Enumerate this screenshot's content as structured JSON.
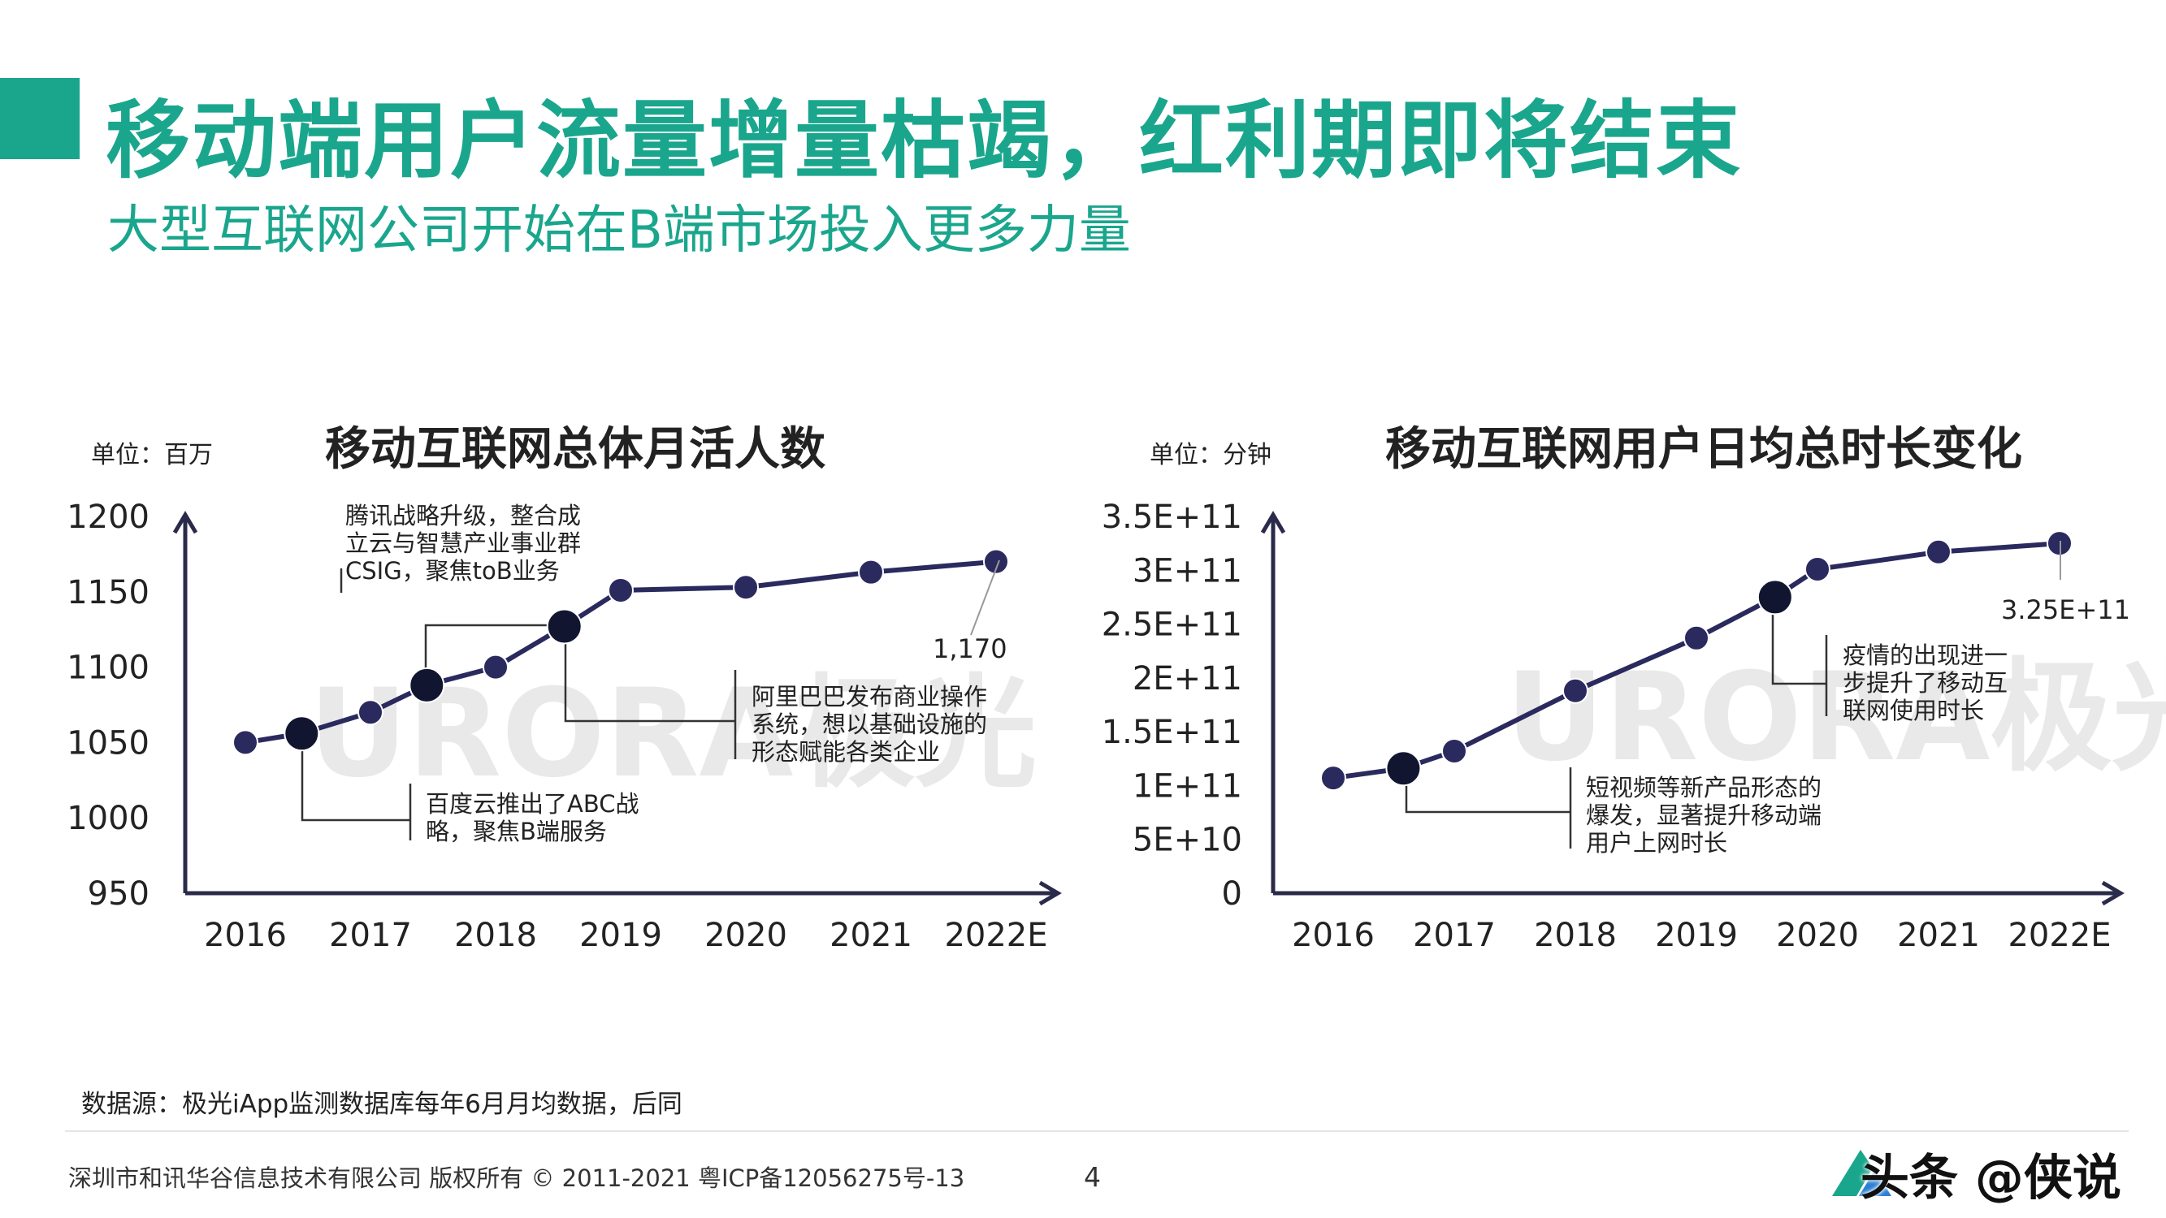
{
  "header": {
    "title": "移动端用户流量增量枯竭，红利期即将结束",
    "subtitle": "大型互联网公司开始在B端市场投入更多力量"
  },
  "colors": {
    "accent": "#1aa68d",
    "series": "#2b2a5e",
    "watermark": "#e9e9e9"
  },
  "chart_data": [
    {
      "type": "line",
      "title": "移动互联网总体月活人数",
      "unit_label": "单位：百万",
      "categories": [
        "2016",
        "2017",
        "2018",
        "2019",
        "2020",
        "2021",
        "2022E"
      ],
      "y_ticks": [
        "1200",
        "1150",
        "1100",
        "1050",
        "1000",
        "950"
      ],
      "ylim": [
        950,
        1200
      ],
      "series": [
        {
          "x": [
            2016,
            2016.45,
            2017,
            2017.45,
            2018,
            2018.55,
            2019,
            2020,
            2021,
            2022
          ],
          "values": [
            1050,
            1056,
            1070,
            1088,
            1100,
            1127,
            1151,
            1153,
            1163,
            1170
          ],
          "highlight_indices": [
            1,
            3,
            5
          ]
        }
      ],
      "data_label": "1,170",
      "annotations": [
        {
          "lines": [
            "腾讯战略升级，整合成",
            "立云与智慧产业事业群",
            "CSIG，聚焦toB业务"
          ]
        },
        {
          "lines": [
            "阿里巴巴发布商业操作",
            "系统，想以基础设施的",
            "形态赋能各类企业"
          ]
        },
        {
          "lines": [
            "百度云推出了ABC战",
            "略，聚焦B端服务"
          ]
        }
      ],
      "watermark": "URORA极光"
    },
    {
      "type": "line",
      "title": "移动互联网用户日均总时长变化",
      "unit_label": "单位：分钟",
      "categories": [
        "2016",
        "2017",
        "2018",
        "2019",
        "2020",
        "2021",
        "2022E"
      ],
      "y_ticks": [
        "3.5E+11",
        "3E+11",
        "2.5E+11",
        "2E+11",
        "1.5E+11",
        "1E+11",
        "5E+10",
        "0"
      ],
      "ylim": [
        0,
        350000000000
      ],
      "series": [
        {
          "x": [
            2016,
            2016.58,
            2017,
            2018,
            2019,
            2019.65,
            2020,
            2021,
            2022
          ],
          "values": [
            107000000000,
            116000000000,
            132000000000,
            188000000000,
            237000000000,
            275000000000,
            301000000000,
            317000000000,
            325000000000
          ],
          "highlight_indices": [
            1,
            5
          ]
        }
      ],
      "data_label": "3.25E+11",
      "annotations": [
        {
          "lines": [
            "疫情的出现进一",
            "步提升了移动互",
            "联网使用时长"
          ]
        },
        {
          "lines": [
            "短视频等新产品形态的",
            "爆发，显著提升移动端",
            "用户上网时长"
          ]
        }
      ],
      "watermark": "URORA极光"
    }
  ],
  "footer": {
    "source": "数据源：极光iApp监测数据库每年6月月均数据，后同",
    "copyright": "深圳市和讯华谷信息技术有限公司 版权所有 © 2011-2021 粤ICP备12056275号-13",
    "page_number": "4",
    "watermark_text": "头条 @侠说"
  }
}
